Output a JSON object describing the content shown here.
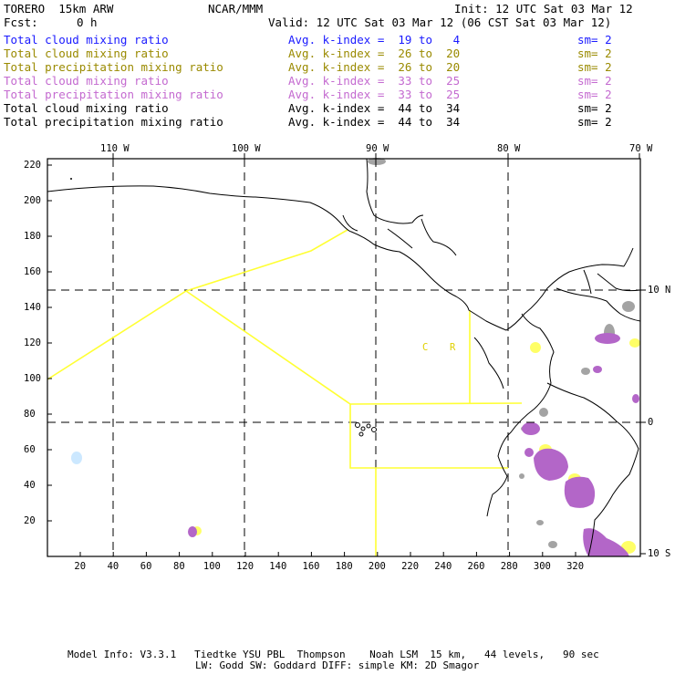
{
  "header": {
    "title_left": "TORERO  15km ARW",
    "title_center": "NCAR/MMM",
    "init": "Init: 12 UTC Sat 03 Mar 12",
    "fcst_label": "Fcst:",
    "fcst_value": "0 h",
    "valid": "Valid: 12 UTC Sat 03 Mar 12 (06 CST Sat 03 Mar 12)"
  },
  "legend": [
    {
      "field": "Total cloud mixing ratio",
      "k": "Avg. k-index =  19 to   4",
      "sm": "sm= 2",
      "color": "#1a1aff"
    },
    {
      "field": "Total cloud mixing ratio",
      "k": "Avg. k-index =  26 to  20",
      "sm": "sm= 2",
      "color": "#9a8a00"
    },
    {
      "field": "Total precipitation mixing ratio",
      "k": "Avg. k-index =  26 to  20",
      "sm": "sm= 2",
      "color": "#9a8a00"
    },
    {
      "field": "Total cloud mixing ratio",
      "k": "Avg. k-index =  33 to  25",
      "sm": "sm= 2",
      "color": "#c46ad0"
    },
    {
      "field": "Total precipitation mixing ratio",
      "k": "Avg. k-index =  33 to  25",
      "sm": "sm= 2",
      "color": "#c46ad0"
    },
    {
      "field": "Total cloud mixing ratio",
      "k": "Avg. k-index =  44 to  34",
      "sm": "sm= 2",
      "color": "#000000"
    },
    {
      "field": "Total precipitation mixing ratio",
      "k": "Avg. k-index =  44 to  34",
      "sm": "sm= 2",
      "color": "#000000"
    }
  ],
  "map": {
    "lon_labels": [
      "110 W",
      "100 W",
      "90 W",
      "80 W",
      "70 W"
    ],
    "lat_labels": [
      "10 N",
      "0",
      "10 S"
    ],
    "y_ticks": [
      "220",
      "200",
      "180",
      "160",
      "140",
      "120",
      "100",
      "80",
      "60",
      "40",
      "20"
    ],
    "x_ticks": [
      "20",
      "40",
      "60",
      "80",
      "100",
      "120",
      "140",
      "160",
      "180",
      "200",
      "220",
      "240",
      "260",
      "280",
      "300",
      "320"
    ],
    "region_labels": [
      "C",
      "R"
    ],
    "colors": {
      "boundary": "#ffff33",
      "grid": "#000000",
      "coast": "#000000",
      "gray_cloud": "#9a9a9a",
      "purple": "#b366c8",
      "yellow": "#ffff66",
      "blue": "#cce8ff"
    }
  },
  "footer": {
    "line1": "Model Info: V3.3.1   Tiedtke YSU PBL  Thompson    Noah LSM  15 km,   44 levels,   90 sec",
    "line2": "LW: Godd SW: Goddard DIFF: simple KM: 2D Smagor"
  }
}
